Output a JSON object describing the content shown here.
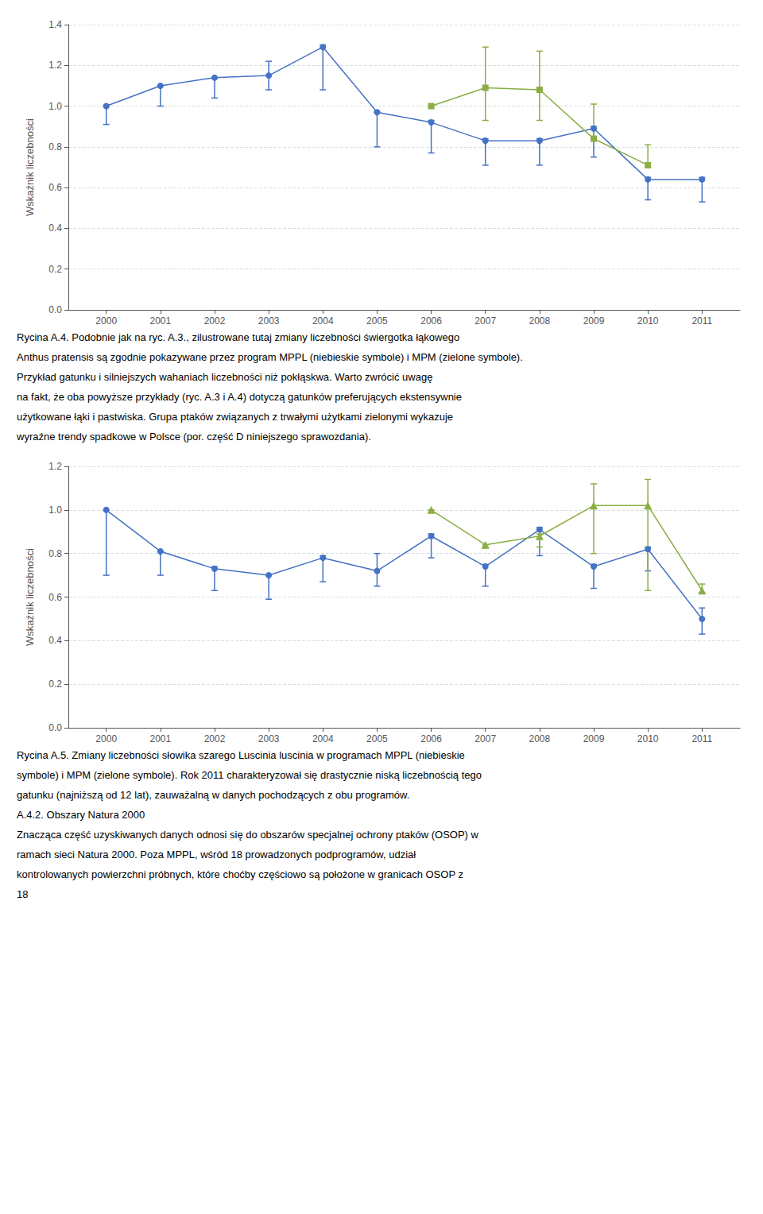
{
  "chart_data": [
    {
      "type": "line",
      "ylabel": "Wskaźnik liczebności",
      "xlim": [
        1999.3,
        2011.7
      ],
      "xticks": [
        2000,
        2001,
        2002,
        2003,
        2004,
        2005,
        2006,
        2007,
        2008,
        2009,
        2010,
        2011
      ],
      "ylim": [
        0.0,
        1.4
      ],
      "yticks": [
        {
          "value": 0.0,
          "label": "0.0"
        },
        {
          "value": 0.2,
          "label": "0.2"
        },
        {
          "value": 0.4,
          "label": "0.4"
        },
        {
          "value": 0.6,
          "label": "0.6"
        },
        {
          "value": 0.8,
          "label": "0.8"
        },
        {
          "value": 1.0,
          "label": "1.0"
        },
        {
          "value": 1.2,
          "label": "1.2"
        },
        {
          "value": 1.4,
          "label": "1.4"
        }
      ],
      "grid": true,
      "series": [
        {
          "color": "#4472C4",
          "marker": "circle",
          "line_style": "solid",
          "x": [
            2000,
            2001,
            2002,
            2003,
            2004,
            2005,
            2006,
            2007,
            2008,
            2009,
            2010,
            2011
          ],
          "values": [
            1.0,
            1.1,
            1.14,
            1.15,
            1.29,
            0.97,
            0.92,
            0.83,
            0.83,
            0.89,
            0.64,
            0.64
          ],
          "error_low": [
            0.91,
            1.0,
            1.04,
            1.08,
            1.08,
            0.8,
            0.77,
            0.71,
            0.71,
            0.75,
            0.54,
            0.53
          ],
          "error_high": [
            1.0,
            1.1,
            1.14,
            1.22,
            1.3,
            0.97,
            0.93,
            0.84,
            0.84,
            0.9,
            0.65,
            0.65
          ]
        },
        {
          "color": "#8AAE45",
          "marker": "square",
          "line_style": "solid",
          "x": [
            2006,
            2007,
            2008,
            2009,
            2010
          ],
          "values": [
            1.0,
            1.09,
            1.08,
            0.84,
            0.71
          ],
          "error_low": [
            1.0,
            0.93,
            0.93,
            0.83,
            0.7
          ],
          "error_high": [
            1.0,
            1.29,
            1.27,
            1.01,
            0.81
          ]
        }
      ],
      "annotations": [
        "Rycina A.4. Podobnie jak na ryc. A.3., zilustrowane tutaj zmiany liczebności świergotka łąkowego",
        "Anthus pratensis są zgodnie pokazywane przez program MPPL (niebieskie symbole) i MPM (zielone symbole).",
        "Przykład gatunku i silniejszych wahaniach liczebności niż pokłąskwa. Warto zwrócić uwagę",
        "na fakt, że oba powyższe przykłady (ryc. A.3 i A.4) dotyczą gatunków preferujących ekstensywnie",
        "użytkowane łąki i pastwiska. Grupa ptaków związanych z trwałymi użytkami zielonymi wykazuje",
        "wyraźne trendy spadkowe w Polsce (por. część D niniejszego sprawozdania)."
      ]
    },
    {
      "type": "line",
      "ylabel": "Wskaźnik liczebności",
      "xlim": [
        1999.3,
        2011.7
      ],
      "xticks": [
        2000,
        2001,
        2002,
        2003,
        2004,
        2005,
        2006,
        2007,
        2008,
        2009,
        2010,
        2011
      ],
      "ylim": [
        0.0,
        1.2
      ],
      "yticks": [
        {
          "value": 0.0,
          "label": "0.0"
        },
        {
          "value": 0.2,
          "label": "0.2"
        },
        {
          "value": 0.4,
          "label": "0.4"
        },
        {
          "value": 0.6,
          "label": "0.6"
        },
        {
          "value": 0.8,
          "label": "0.8"
        },
        {
          "value": 1.0,
          "label": "1.0"
        },
        {
          "value": 1.2,
          "label": "1.2"
        }
      ],
      "grid": true,
      "series": [
        {
          "color": "#4472C4",
          "marker": "circle",
          "line_style": "solid",
          "x": [
            2000,
            2001,
            2002,
            2003,
            2004,
            2005,
            2006,
            2007,
            2008,
            2009,
            2010,
            2011
          ],
          "values": [
            1.0,
            0.81,
            0.73,
            0.7,
            0.78,
            0.72,
            0.88,
            0.74,
            0.91,
            0.74,
            0.82,
            0.5
          ],
          "error_low": [
            0.7,
            0.7,
            0.63,
            0.59,
            0.67,
            0.65,
            0.78,
            0.65,
            0.79,
            0.64,
            0.72,
            0.43
          ],
          "error_high": [
            1.0,
            0.81,
            0.74,
            0.7,
            0.79,
            0.8,
            0.89,
            0.75,
            0.92,
            0.75,
            0.83,
            0.55
          ]
        },
        {
          "color": "#8AAE45",
          "marker": "triangle",
          "line_style": "solid",
          "x": [
            2006,
            2007,
            2008,
            2009,
            2010,
            2011
          ],
          "values": [
            1.0,
            0.84,
            0.88,
            1.02,
            1.02,
            0.63
          ],
          "error_low": [
            1.0,
            0.83,
            0.83,
            0.8,
            0.63,
            0.62
          ],
          "error_high": [
            1.0,
            0.84,
            0.89,
            1.12,
            1.14,
            0.66
          ]
        }
      ],
      "annotations": [
        "Rycina A.5. Zmiany liczebności słowika szarego Luscinia luscinia w programach MPPL (niebieskie",
        "symbole) i MPM (zielone symbole). Rok 2011 charakteryzował się drastycznie niską liczebnością tego",
        "gatunku (najniższą od 12 lat), zauważalną w danych pochodzących z obu programów.",
        "A.4.2. Obszary Natura 2000",
        "Znacząca część uzyskiwanych danych odnosi się do obszarów specjalnej ochrony ptaków (OSOP) w",
        "ramach sieci Natura 2000. Poza MPPL, wśród 18 prowadzonych podprogramów, udział",
        "kontrolowanych powierzchni próbnych, które choćby częściowo są położone w granicach OSOP z",
        "18"
      ]
    }
  ]
}
